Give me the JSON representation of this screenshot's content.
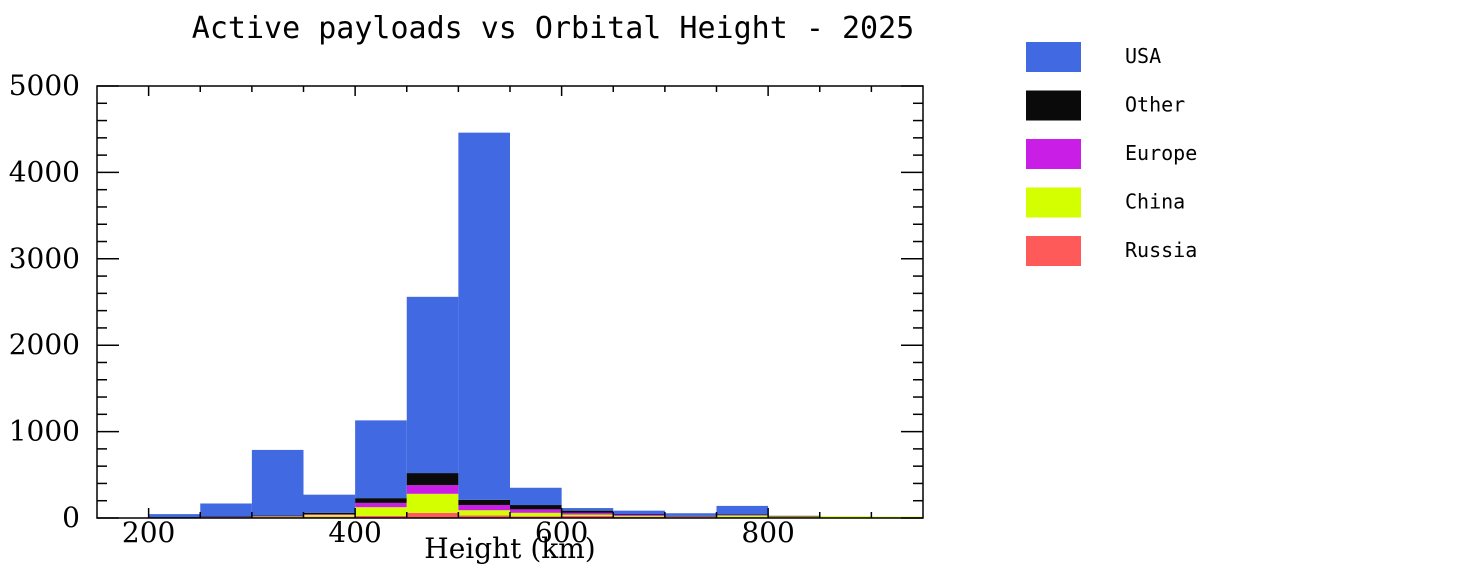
{
  "chart_data": {
    "type": "bar",
    "title": "Active payloads vs Orbital Height - 2025",
    "xlabel": "Height (km)",
    "ylabel": "",
    "xlim": [
      150,
      950
    ],
    "ylim": [
      0,
      5000
    ],
    "x_ticks": [
      200,
      400,
      600,
      800
    ],
    "y_ticks": [
      0,
      1000,
      2000,
      3000,
      4000,
      5000
    ],
    "grid": false,
    "legend_placement": "outside-right",
    "stacked": true,
    "bin_edges": [
      150,
      200,
      250,
      300,
      350,
      400,
      450,
      500,
      550,
      600,
      650,
      700,
      750,
      800,
      850,
      900,
      950
    ],
    "series": [
      {
        "name": "Russia",
        "color": "#ff5a5a",
        "values": [
          0,
          3,
          5,
          10,
          15,
          25,
          60,
          30,
          20,
          25,
          15,
          10,
          10,
          10,
          5,
          5
        ]
      },
      {
        "name": "China",
        "color": "#d4ff00",
        "values": [
          0,
          2,
          5,
          10,
          20,
          100,
          220,
          60,
          40,
          15,
          10,
          5,
          20,
          10,
          15,
          10
        ]
      },
      {
        "name": "Europe",
        "color": "#c81ee6",
        "values": [
          0,
          2,
          3,
          3,
          10,
          50,
          100,
          60,
          40,
          20,
          10,
          5,
          5,
          3,
          0,
          0
        ]
      },
      {
        "name": "Other",
        "color": "#0a0a0a",
        "values": [
          0,
          3,
          5,
          5,
          15,
          55,
          140,
          60,
          50,
          25,
          10,
          5,
          5,
          2,
          0,
          0
        ]
      },
      {
        "name": "USA",
        "color": "#4169e1",
        "values": [
          5,
          35,
          150,
          760,
          210,
          900,
          2040,
          4250,
          200,
          30,
          40,
          30,
          100,
          0,
          0,
          0
        ]
      }
    ],
    "legend_order": [
      "USA",
      "Other",
      "Europe",
      "China",
      "Russia"
    ]
  }
}
